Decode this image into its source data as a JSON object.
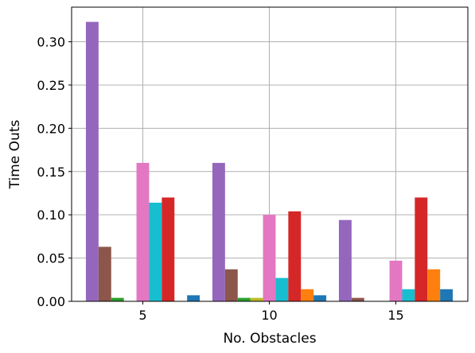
{
  "chart_data": {
    "type": "bar",
    "title": "",
    "xlabel": "No. Obstacles",
    "ylabel": "Time Outs",
    "categories": [
      "5",
      "10",
      "15"
    ],
    "ylim": [
      0,
      0.34
    ],
    "yticks": [
      "0.00",
      "0.05",
      "0.10",
      "0.15",
      "0.20",
      "0.25",
      "0.30"
    ],
    "grid": true,
    "legend": false,
    "series": [
      {
        "color": "#9467bd",
        "values": [
          0.323,
          0.16,
          0.094
        ]
      },
      {
        "color": "#8c564b",
        "values": [
          0.063,
          0.037,
          0.004
        ]
      },
      {
        "color": "#2ca02c",
        "values": [
          0.004,
          0.004,
          0.0
        ]
      },
      {
        "color": "#bcbd22",
        "values": [
          0.0,
          0.004,
          0.0
        ]
      },
      {
        "color": "#e377c2",
        "values": [
          0.16,
          0.1,
          0.047
        ]
      },
      {
        "color": "#17becf",
        "values": [
          0.114,
          0.027,
          0.014
        ]
      },
      {
        "color": "#d62728",
        "values": [
          0.12,
          0.104,
          0.12
        ]
      },
      {
        "color": "#ff7f0e",
        "values": [
          0.0,
          0.014,
          0.037
        ]
      },
      {
        "color": "#1f77b4",
        "values": [
          0.007,
          0.007,
          0.014
        ]
      }
    ]
  }
}
